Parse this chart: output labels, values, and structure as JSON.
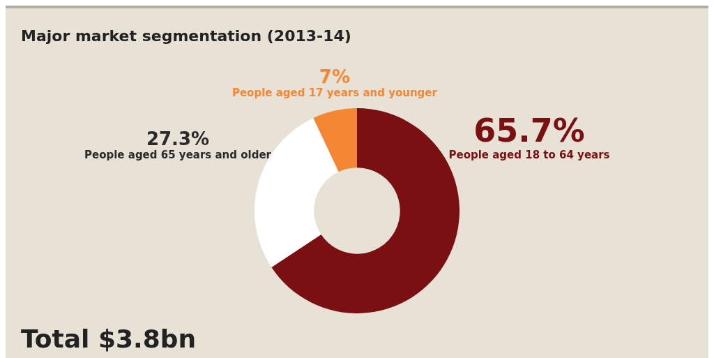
{
  "chart_data": {
    "type": "donut",
    "title": "Major market segmentation (2013-14)",
    "categories": [
      "People aged 18 to 64 years",
      "People aged 65 years and older",
      "People aged 17 years and younger"
    ],
    "values": [
      65.7,
      27.3,
      7
    ],
    "colors": [
      "#7a1012",
      "#ffffff",
      "#f58634"
    ],
    "value_labels": [
      "65.7%",
      "27.3%",
      "7%"
    ],
    "legend": false,
    "annotations": [
      "Total $3.8bn"
    ]
  }
}
